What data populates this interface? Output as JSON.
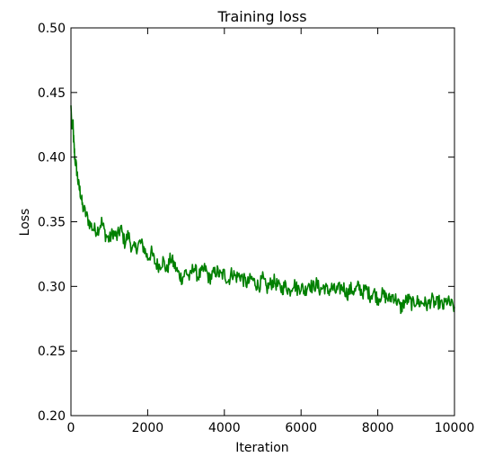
{
  "chart_data": {
    "type": "line",
    "title": "Training loss",
    "xlabel": "Iteration",
    "ylabel": "Loss",
    "xlim": [
      0,
      10000
    ],
    "ylim": [
      0.2,
      0.5
    ],
    "x_ticks": [
      "0",
      "2000",
      "4000",
      "6000",
      "8000",
      "10000"
    ],
    "y_ticks": [
      "0.20",
      "0.25",
      "0.30",
      "0.35",
      "0.40",
      "0.45",
      "0.50"
    ],
    "grid": false,
    "legend": "none",
    "series": [
      {
        "color": "#008000",
        "x": [
          0,
          25,
          50,
          75,
          100,
          150,
          200,
          250,
          300,
          400,
          500,
          600,
          700,
          800,
          900,
          1000,
          1100,
          1200,
          1300,
          1400,
          1500,
          1600,
          1700,
          1800,
          1900,
          2000,
          2100,
          2200,
          2300,
          2400,
          2500,
          2600,
          2700,
          2800,
          2900,
          3000,
          3100,
          3200,
          3300,
          3400,
          3500,
          3600,
          3700,
          3800,
          3900,
          4000,
          4100,
          4200,
          4300,
          4400,
          4500,
          4600,
          4700,
          4800,
          4900,
          5000,
          5100,
          5200,
          5300,
          5400,
          5500,
          5600,
          5700,
          5800,
          5900,
          6000,
          6100,
          6200,
          6300,
          6400,
          6500,
          6600,
          6700,
          6800,
          6900,
          7000,
          7100,
          7200,
          7300,
          7400,
          7500,
          7600,
          7700,
          7800,
          7900,
          8000,
          8100,
          8200,
          8300,
          8400,
          8500,
          8600,
          8700,
          8800,
          8900,
          9000,
          9100,
          9200,
          9300,
          9400,
          9500,
          9600,
          9700,
          9800,
          9900,
          10000
        ],
        "y": [
          0.44,
          0.422,
          0.426,
          0.41,
          0.4,
          0.39,
          0.378,
          0.372,
          0.362,
          0.355,
          0.348,
          0.344,
          0.344,
          0.35,
          0.34,
          0.336,
          0.342,
          0.338,
          0.345,
          0.334,
          0.34,
          0.328,
          0.33,
          0.334,
          0.33,
          0.322,
          0.326,
          0.318,
          0.316,
          0.32,
          0.312,
          0.322,
          0.316,
          0.31,
          0.306,
          0.312,
          0.306,
          0.316,
          0.308,
          0.31,
          0.314,
          0.306,
          0.309,
          0.312,
          0.308,
          0.31,
          0.304,
          0.311,
          0.307,
          0.309,
          0.305,
          0.302,
          0.306,
          0.303,
          0.3,
          0.306,
          0.298,
          0.302,
          0.304,
          0.3,
          0.298,
          0.301,
          0.296,
          0.303,
          0.298,
          0.3,
          0.296,
          0.303,
          0.299,
          0.302,
          0.297,
          0.3,
          0.296,
          0.299,
          0.296,
          0.298,
          0.3,
          0.294,
          0.298,
          0.296,
          0.3,
          0.295,
          0.298,
          0.293,
          0.296,
          0.29,
          0.294,
          0.292,
          0.29,
          0.293,
          0.289,
          0.283,
          0.288,
          0.29,
          0.286,
          0.289,
          0.287,
          0.288,
          0.285,
          0.29,
          0.286,
          0.288,
          0.284,
          0.289,
          0.286,
          0.284
        ]
      }
    ]
  }
}
